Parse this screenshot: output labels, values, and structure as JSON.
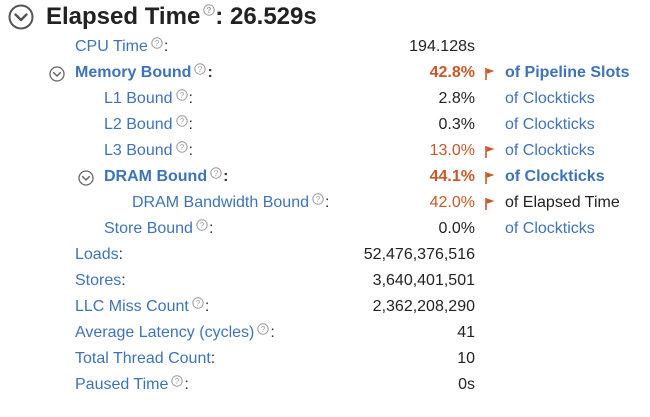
{
  "title": {
    "label": "Elapsed Time",
    "separator": ":",
    "value": "26.529s"
  },
  "colors": {
    "link": "#3f73b7",
    "warning": "#c8582a",
    "text": "#222222"
  },
  "icons": {
    "expand": "chevron-circle-icon",
    "help": "question-circle-icon",
    "flag": "red-flag-icon"
  },
  "rows": [
    {
      "label": "CPU Time",
      "value": "194.128s",
      "unit": ""
    },
    {
      "label": "Memory Bound",
      "value": "42.8%",
      "unit": "of Pipeline Slots"
    },
    {
      "label": "L1 Bound",
      "value": "2.8%",
      "unit": "of Clockticks"
    },
    {
      "label": "L2 Bound",
      "value": "0.3%",
      "unit": "of Clockticks"
    },
    {
      "label": "L3 Bound",
      "value": "13.0%",
      "unit": "of Clockticks"
    },
    {
      "label": "DRAM Bound",
      "value": "44.1%",
      "unit": "of Clockticks"
    },
    {
      "label": "DRAM Bandwidth Bound",
      "value": "42.0%",
      "unit": "of Elapsed Time"
    },
    {
      "label": "Store Bound",
      "value": "0.0%",
      "unit": "of Clockticks"
    },
    {
      "label": "Loads",
      "value": "52,476,376,516",
      "unit": ""
    },
    {
      "label": "Stores",
      "value": "3,640,401,501",
      "unit": ""
    },
    {
      "label": "LLC Miss Count",
      "value": "2,362,208,290",
      "unit": ""
    },
    {
      "label": "Average Latency (cycles)",
      "value": "41",
      "unit": ""
    },
    {
      "label": "Total Thread Count",
      "value": "10",
      "unit": ""
    },
    {
      "label": "Paused Time",
      "value": "0s",
      "unit": ""
    }
  ]
}
